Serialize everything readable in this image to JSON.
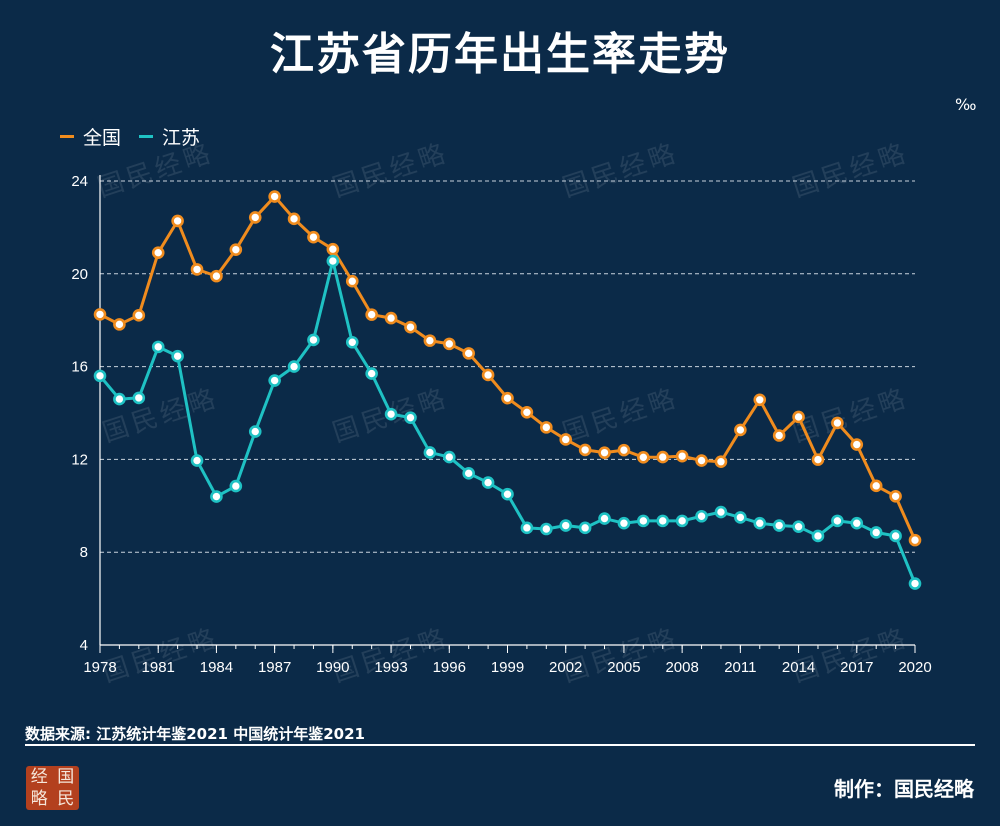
{
  "title": "江苏省历年出生率走势",
  "unit": "‰",
  "legend": [
    {
      "name": "全国",
      "color": "#f08c1e"
    },
    {
      "name": "江苏",
      "color": "#1fc2c4"
    }
  ],
  "watermark": "国民经略",
  "source": "数据来源: 江苏统计年鉴2021 中国统计年鉴2021",
  "credit": "制作：国民经略",
  "logo": [
    "经",
    "国",
    "略",
    "民"
  ],
  "colors": {
    "background": "#0b2a48",
    "national": "#f08c1e",
    "jiangsu": "#1fc2c4"
  },
  "chart_data": {
    "type": "line",
    "title": "江苏省历年出生率走势",
    "ylabel": "‰",
    "xlabel": "",
    "ylim": [
      4,
      24
    ],
    "yticks": [
      4,
      8,
      12,
      16,
      20,
      24
    ],
    "xticks": [
      1978,
      1981,
      1984,
      1987,
      1990,
      1993,
      1996,
      1999,
      2002,
      2005,
      2008,
      2011,
      2014,
      2017,
      2020
    ],
    "x": [
      1978,
      1979,
      1980,
      1981,
      1982,
      1983,
      1984,
      1985,
      1986,
      1987,
      1988,
      1989,
      1990,
      1991,
      1992,
      1993,
      1994,
      1995,
      1996,
      1997,
      1998,
      1999,
      2000,
      2001,
      2002,
      2003,
      2004,
      2005,
      2006,
      2007,
      2008,
      2009,
      2010,
      2011,
      2012,
      2013,
      2014,
      2015,
      2016,
      2017,
      2018,
      2019,
      2020
    ],
    "series": [
      {
        "name": "全国",
        "color": "#f08c1e",
        "values": [
          18.25,
          17.82,
          18.21,
          20.91,
          22.28,
          20.19,
          19.9,
          21.04,
          22.43,
          23.33,
          22.37,
          21.58,
          21.06,
          19.68,
          18.24,
          18.09,
          17.7,
          17.12,
          16.98,
          16.57,
          15.64,
          14.64,
          14.03,
          13.38,
          12.86,
          12.41,
          12.29,
          12.4,
          12.09,
          12.1,
          12.14,
          11.95,
          11.9,
          13.27,
          14.57,
          13.03,
          13.83,
          11.99,
          13.57,
          12.64,
          10.86,
          10.41,
          8.52
        ]
      },
      {
        "name": "江苏",
        "color": "#1fc2c4",
        "values": [
          15.6,
          14.6,
          14.65,
          16.85,
          16.45,
          11.95,
          10.4,
          10.85,
          13.2,
          15.4,
          16.0,
          17.15,
          20.55,
          17.05,
          15.7,
          13.95,
          13.8,
          12.3,
          12.1,
          11.4,
          11.0,
          10.5,
          9.05,
          9.0,
          9.15,
          9.05,
          9.45,
          9.25,
          9.35,
          9.35,
          9.35,
          9.55,
          9.73,
          9.5,
          9.25,
          9.15,
          9.1,
          8.7,
          9.35,
          9.25,
          8.85,
          8.7,
          6.65
        ]
      }
    ]
  }
}
